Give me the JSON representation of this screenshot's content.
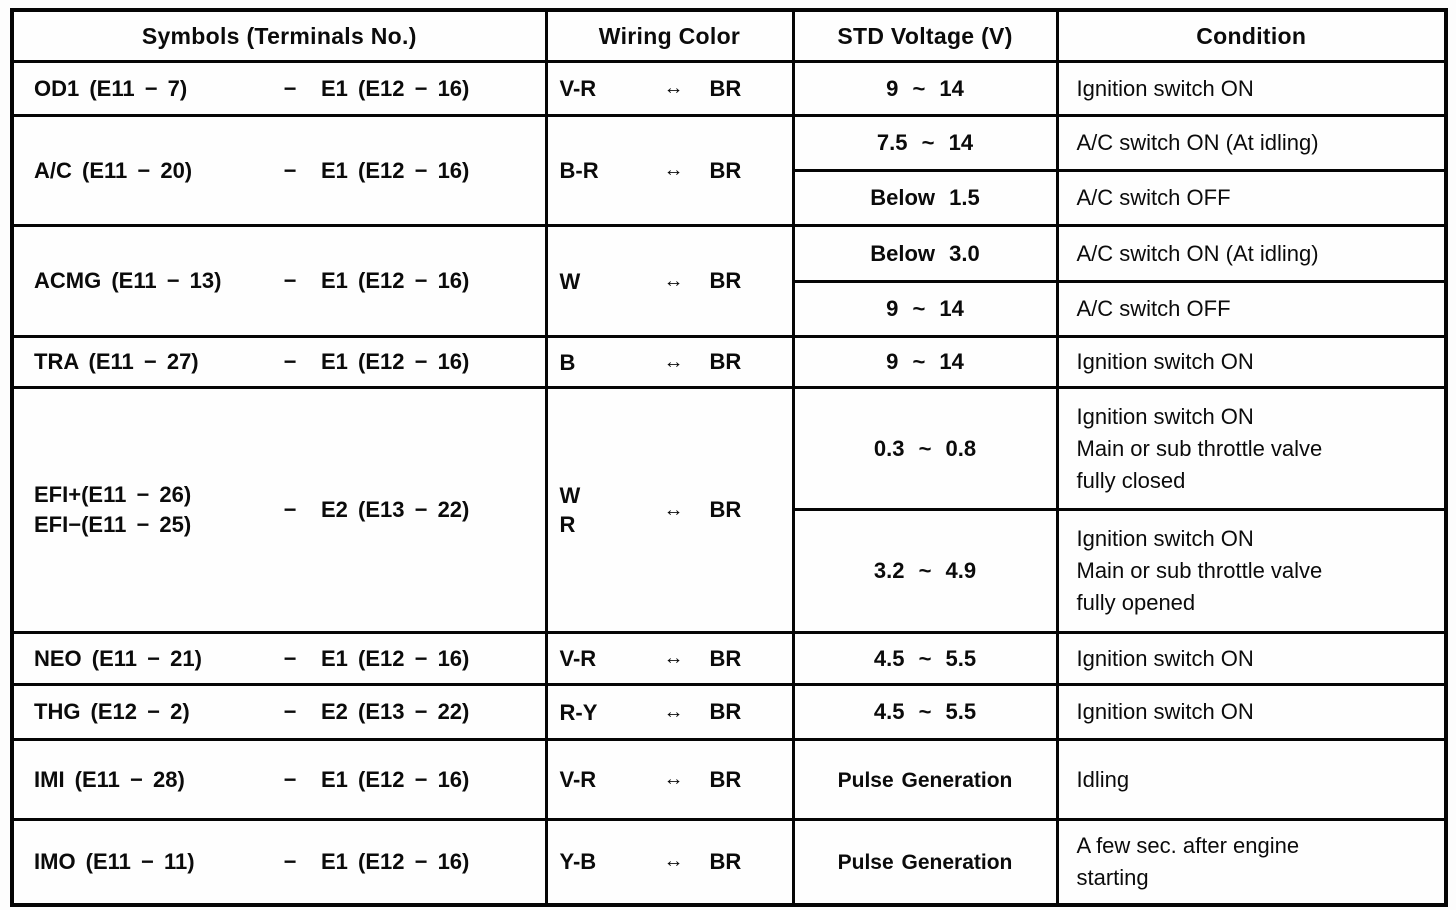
{
  "table": {
    "headers": [
      "Symbols (Terminals No.)",
      "Wiring Color",
      "STD Voltage (V)",
      "Condition"
    ],
    "groups": [
      {
        "symbol_lines": [
          "OD1 (E11 − 7)"
        ],
        "dash": "−",
        "terminal": "E1 (E12 − 16)",
        "wire_lines": [
          "V-R"
        ],
        "arrow": "↔",
        "wire_to": "BR",
        "rows": [
          {
            "voltage": "9 ~ 14",
            "pulse": false,
            "condition_lines": [
              "Ignition switch ON"
            ]
          }
        ]
      },
      {
        "symbol_lines": [
          "A/C (E11 − 20)"
        ],
        "dash": "−",
        "terminal": "E1 (E12 − 16)",
        "wire_lines": [
          "B-R"
        ],
        "arrow": "↔",
        "wire_to": "BR",
        "rows": [
          {
            "voltage": "7.5 ~ 14",
            "pulse": false,
            "condition_lines": [
              "A/C switch ON (At idling)"
            ]
          },
          {
            "voltage": "Below 1.5",
            "pulse": false,
            "condition_lines": [
              "A/C switch OFF"
            ]
          }
        ]
      },
      {
        "symbol_lines": [
          "ACMG (E11 − 13)"
        ],
        "dash": "−",
        "terminal": "E1 (E12 − 16)",
        "wire_lines": [
          "W"
        ],
        "arrow": "↔",
        "wire_to": "BR",
        "rows": [
          {
            "voltage": "Below 3.0",
            "pulse": false,
            "condition_lines": [
              "A/C switch ON (At idling)"
            ]
          },
          {
            "voltage": "9 ~ 14",
            "pulse": false,
            "condition_lines": [
              "A/C switch OFF"
            ]
          }
        ]
      },
      {
        "symbol_lines": [
          "TRA (E11 − 27)"
        ],
        "dash": "−",
        "terminal": "E1 (E12 − 16)",
        "wire_lines": [
          "B"
        ],
        "arrow": "↔",
        "wire_to": "BR",
        "rows": [
          {
            "voltage": "9 ~ 14",
            "pulse": false,
            "condition_lines": [
              "Ignition switch ON"
            ]
          }
        ]
      },
      {
        "symbol_lines": [
          "EFI+(E11 − 26)",
          "EFI−(E11 − 25)"
        ],
        "dash": "−",
        "terminal": "E2 (E13 − 22)",
        "wire_lines": [
          "W",
          "R"
        ],
        "arrow": "↔",
        "wire_to": "BR",
        "rows": [
          {
            "voltage": "0.3 ~ 0.8",
            "pulse": false,
            "condition_lines": [
              "Ignition switch ON",
              "Main or sub throttle valve",
              "fully closed"
            ]
          },
          {
            "voltage": "3.2 ~ 4.9",
            "pulse": false,
            "condition_lines": [
              "Ignition switch ON",
              "Main or sub throttle valve",
              "fully opened"
            ]
          }
        ]
      },
      {
        "symbol_lines": [
          "NEO (E11 − 21)"
        ],
        "dash": "−",
        "terminal": "E1 (E12 − 16)",
        "wire_lines": [
          "V-R"
        ],
        "arrow": "↔",
        "wire_to": "BR",
        "rows": [
          {
            "voltage": "4.5 ~ 5.5",
            "pulse": false,
            "condition_lines": [
              "Ignition switch ON"
            ]
          }
        ]
      },
      {
        "symbol_lines": [
          "THG (E12 − 2)"
        ],
        "dash": "−",
        "terminal": "E2 (E13 − 22)",
        "wire_lines": [
          "R-Y"
        ],
        "arrow": "↔",
        "wire_to": "BR",
        "rows": [
          {
            "voltage": "4.5 ~ 5.5",
            "pulse": false,
            "condition_lines": [
              "Ignition switch ON"
            ]
          }
        ]
      },
      {
        "symbol_lines": [
          "IMI (E11 − 28)"
        ],
        "dash": "−",
        "terminal": "E1 (E12 − 16)",
        "wire_lines": [
          "V-R"
        ],
        "arrow": "↔",
        "wire_to": "BR",
        "rows": [
          {
            "voltage": "Pulse Generation",
            "pulse": true,
            "condition_lines": [
              "Idling"
            ]
          }
        ]
      },
      {
        "symbol_lines": [
          "IMO (E11 − 11)"
        ],
        "dash": "−",
        "terminal": "E1 (E12 − 16)",
        "wire_lines": [
          "Y-B"
        ],
        "arrow": "↔",
        "wire_to": "BR",
        "rows": [
          {
            "voltage": "Pulse Generation",
            "pulse": true,
            "condition_lines": [
              "A few sec. after engine",
              "starting"
            ]
          }
        ]
      }
    ]
  }
}
